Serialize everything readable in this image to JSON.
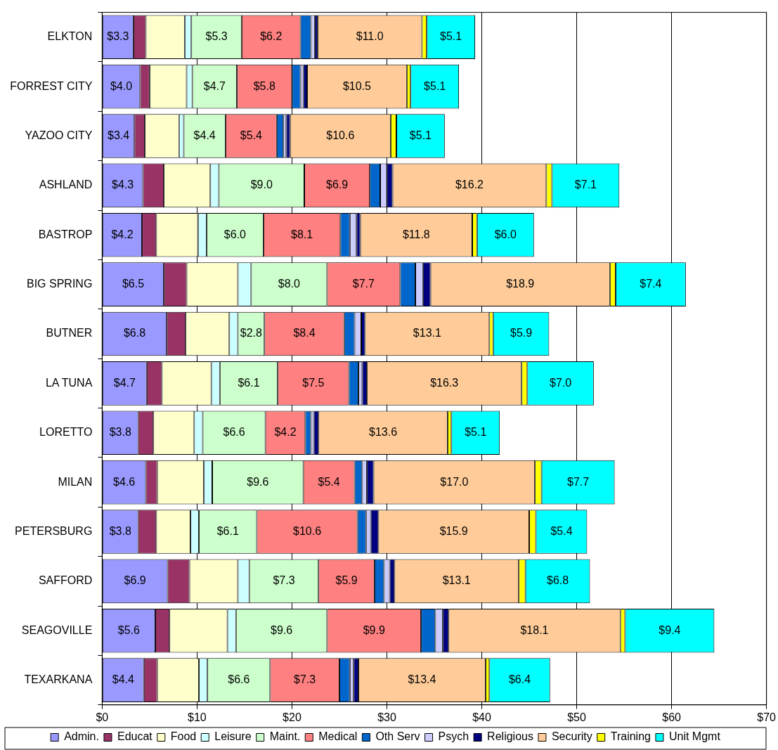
{
  "chart_data": {
    "type": "bar",
    "orientation": "horizontal",
    "stacked": true,
    "grid": "x",
    "legend": "bottom",
    "categories": [
      "ELKTON",
      "FORREST CITY",
      "YAZOO CITY",
      "ASHLAND",
      "BASTROP",
      "BIG SPRING",
      "BUTNER",
      "LA TUNA",
      "LORETTO",
      "MILAN",
      "PETERSBURG",
      "SAFFORD",
      "SEAGOVILLE",
      "TEXARKANA"
    ],
    "xlim": [
      0,
      70
    ],
    "xticks": [
      {
        "value": 0,
        "label": "$0"
      },
      {
        "value": 10,
        "label": "$10"
      },
      {
        "value": 20,
        "label": "$20"
      },
      {
        "value": 30,
        "label": "$30"
      },
      {
        "value": 40,
        "label": "$40"
      },
      {
        "value": 50,
        "label": "$50"
      },
      {
        "value": 60,
        "label": "$60"
      },
      {
        "value": 70,
        "label": "$70"
      }
    ],
    "series": [
      {
        "name": "Admin.",
        "color": "#9999ff",
        "values": [
          3.3,
          4.0,
          3.4,
          4.3,
          4.2,
          6.5,
          6.8,
          4.7,
          3.8,
          4.6,
          3.8,
          6.9,
          5.6,
          4.4
        ],
        "value_labels": [
          "$3.3",
          "$4.0",
          "$3.4",
          "$4.3",
          "$4.2",
          "$6.5",
          "$6.8",
          "$4.7",
          "$3.8",
          "$4.6",
          "$3.8",
          "$6.9",
          "$5.6",
          "$4.4"
        ]
      },
      {
        "name": "Educat",
        "color": "#993366",
        "values": [
          1.3,
          1.0,
          1.1,
          2.2,
          1.5,
          2.4,
          2.0,
          1.6,
          1.6,
          1.2,
          1.9,
          2.3,
          1.5,
          1.4
        ]
      },
      {
        "name": "Food",
        "color": "#ffffcc",
        "values": [
          4.1,
          3.9,
          3.6,
          4.9,
          4.4,
          5.4,
          4.6,
          5.2,
          4.3,
          4.9,
          3.6,
          5.1,
          6.1,
          4.4
        ]
      },
      {
        "name": "Leisure",
        "color": "#ccffff",
        "values": [
          0.7,
          0.6,
          0.5,
          0.9,
          0.9,
          1.4,
          0.9,
          0.9,
          0.9,
          0.9,
          0.9,
          1.2,
          0.9,
          0.9
        ]
      },
      {
        "name": "Maint.",
        "color": "#ccffcc",
        "values": [
          5.3,
          4.7,
          4.4,
          9.0,
          6.0,
          8.0,
          2.8,
          6.1,
          6.6,
          9.6,
          6.1,
          7.3,
          9.6,
          6.6
        ],
        "value_labels": [
          "$5.3",
          "$4.7",
          "$4.4",
          "$9.0",
          "$6.0",
          "$8.0",
          "$2.8",
          "$6.1",
          "$6.6",
          "$9.6",
          "$6.1",
          "$7.3",
          "$9.6",
          "$6.6"
        ]
      },
      {
        "name": "Medical",
        "color": "#ff8080",
        "values": [
          6.2,
          5.8,
          5.4,
          6.9,
          8.1,
          7.7,
          8.4,
          7.5,
          4.2,
          5.4,
          10.6,
          5.9,
          9.9,
          7.3
        ],
        "value_labels": [
          "$6.2",
          "$5.8",
          "$5.4",
          "$6.9",
          "$8.1",
          "$7.7",
          "$8.4",
          "$7.5",
          "$4.2",
          "$5.4",
          "$10.6",
          "$5.9",
          "$9.9",
          "$7.3"
        ]
      },
      {
        "name": "Oth Serv",
        "color": "#0066cc",
        "values": [
          1.1,
          0.9,
          0.7,
          1.1,
          1.0,
          1.6,
          1.1,
          1.0,
          0.6,
          0.8,
          0.9,
          1.0,
          1.5,
          1.1
        ]
      },
      {
        "name": "Psych",
        "color": "#ccccff",
        "values": [
          0.4,
          0.3,
          0.3,
          0.7,
          0.7,
          0.8,
          0.7,
          0.4,
          0.3,
          0.5,
          0.5,
          0.6,
          0.8,
          0.4
        ]
      },
      {
        "name": "Religious",
        "color": "#000080",
        "values": [
          0.3,
          0.4,
          0.4,
          0.6,
          0.4,
          0.8,
          0.4,
          0.5,
          0.5,
          0.7,
          0.8,
          0.5,
          0.6,
          0.5
        ]
      },
      {
        "name": "Security",
        "color": "#ffcc99",
        "values": [
          11.0,
          10.5,
          10.6,
          16.2,
          11.8,
          18.9,
          13.1,
          16.3,
          13.6,
          17.0,
          15.9,
          13.1,
          18.1,
          13.4
        ],
        "value_labels": [
          "$11.0",
          "$10.5",
          "$10.6",
          "$16.2",
          "$11.8",
          "$18.9",
          "$13.1",
          "$16.3",
          "$13.6",
          "$17.0",
          "$15.9",
          "$13.1",
          "$18.1",
          "$13.4"
        ]
      },
      {
        "name": "Training",
        "color": "#ffff00",
        "values": [
          0.5,
          0.4,
          0.6,
          0.6,
          0.5,
          0.6,
          0.4,
          0.6,
          0.4,
          0.7,
          0.7,
          0.7,
          0.5,
          0.4
        ]
      },
      {
        "name": "Unit Mgmt",
        "color": "#00ffff",
        "values": [
          5.1,
          5.1,
          5.1,
          7.1,
          6.0,
          7.4,
          5.9,
          7.0,
          5.1,
          7.7,
          5.4,
          6.8,
          9.4,
          6.4
        ],
        "value_labels": [
          "$5.1",
          "$5.1",
          "$5.1",
          "$7.1",
          "$6.0",
          "$7.4",
          "$5.9",
          "$7.0",
          "$5.1",
          "$7.7",
          "$5.4",
          "$6.8",
          "$9.4",
          "$6.4"
        ]
      }
    ]
  }
}
